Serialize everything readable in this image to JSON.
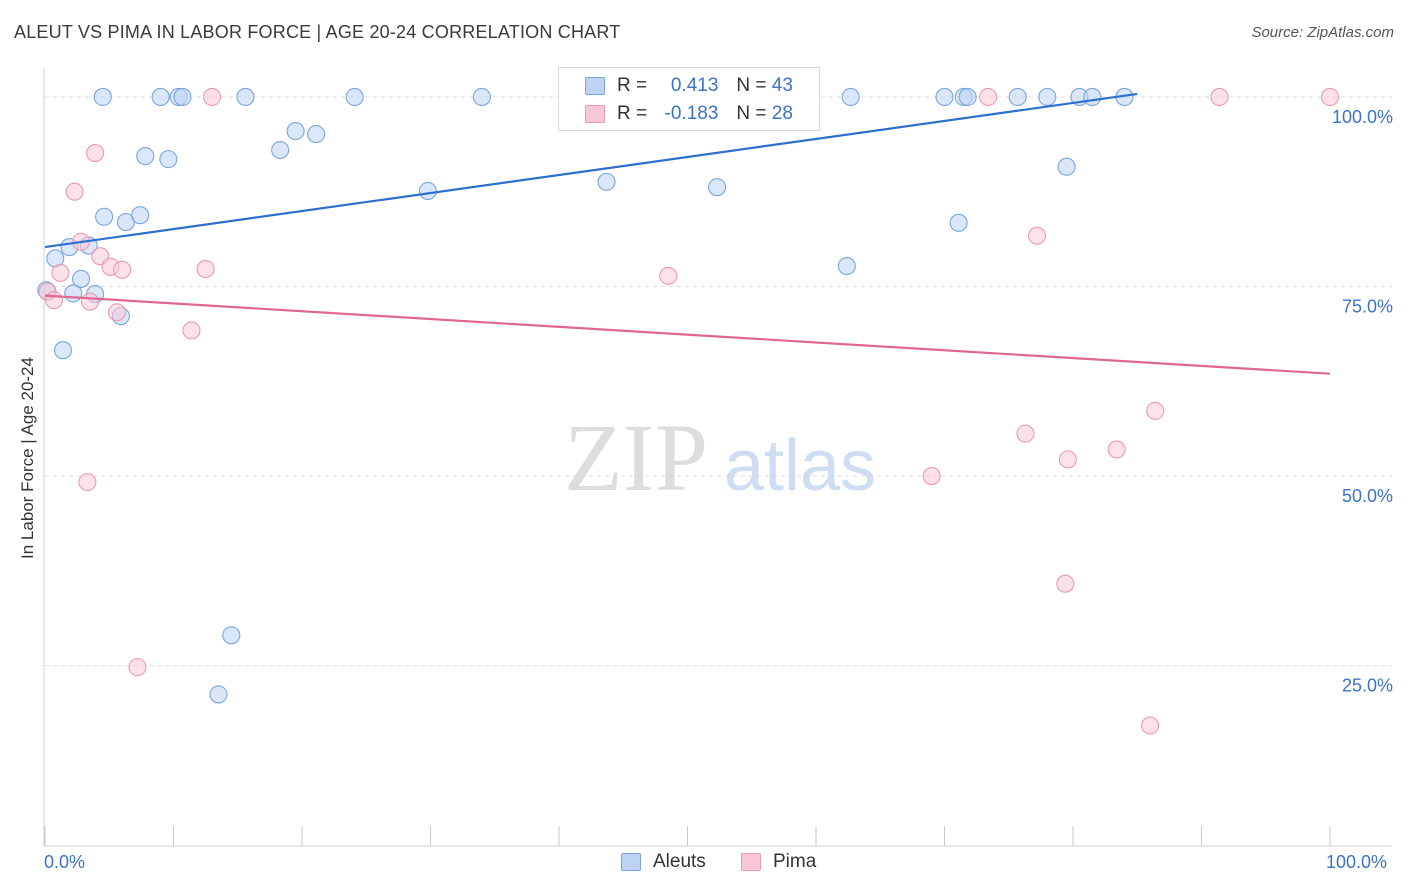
{
  "title": "ALEUT VS PIMA IN LABOR FORCE | AGE 20-24 CORRELATION CHART",
  "source": "Source: ZipAtlas.com",
  "watermark": {
    "zip": "ZIP",
    "atlas": "atlas"
  },
  "legend": {
    "aleuts": {
      "r_label": "R =",
      "r_value": "0.413",
      "n_label": "N =",
      "n_value": "43"
    },
    "pima": {
      "r_label": "R =",
      "r_value": "-0.183",
      "n_label": "N =",
      "n_value": "28"
    }
  },
  "bottom_legend": {
    "aleuts": "Aleuts",
    "pima": "Pima"
  },
  "colors": {
    "aleuts_fill": "#bcd3f2",
    "aleuts_stroke": "#7aa5dd",
    "aleuts_line": "#2d6fce",
    "pima_fill": "#f9c8d6",
    "pima_stroke": "#eb9ab3",
    "pima_line": "#e06694",
    "tick_text": "#3b73c6",
    "grid": "#dcdcdc"
  },
  "chart_data": {
    "type": "scatter",
    "title": "ALEUT VS PIMA IN LABOR FORCE | AGE 20-24 CORRELATION CHART",
    "xlabel": "",
    "ylabel": "In Labor Force | Age 20-24",
    "xlim": [
      0,
      100
    ],
    "ylim": [
      2,
      102.5
    ],
    "x_tick_labels": [
      {
        "label": "0.0%",
        "value": 0
      },
      {
        "label": "100.0%",
        "value": 100
      }
    ],
    "y_tick_labels": [
      {
        "label": "100.0%",
        "value": 100
      },
      {
        "label": "75.0%",
        "value": 75
      },
      {
        "label": "50.0%",
        "value": 50
      },
      {
        "label": "25.0%",
        "value": 25
      }
    ],
    "series": [
      {
        "name": "Aleuts",
        "r": 0.413,
        "n": 43,
        "trend": [
          [
            0,
            80.2
          ],
          [
            85,
            100.4
          ]
        ],
        "points": [
          [
            0.1,
            74.5
          ],
          [
            0.8,
            78.7
          ],
          [
            1.4,
            66.6
          ],
          [
            1.9,
            80.2
          ],
          [
            2.2,
            74.1
          ],
          [
            2.8,
            76.0
          ],
          [
            3.4,
            80.4
          ],
          [
            3.9,
            74.0
          ],
          [
            4.6,
            84.2
          ],
          [
            4.5,
            100.0
          ],
          [
            5.9,
            71.1
          ],
          [
            6.3,
            83.5
          ],
          [
            7.4,
            84.4
          ],
          [
            7.8,
            92.2
          ],
          [
            9.0,
            100.0
          ],
          [
            9.6,
            91.8
          ],
          [
            10.4,
            100.0
          ],
          [
            10.7,
            100.0
          ],
          [
            13.5,
            21.2
          ],
          [
            14.5,
            29.0
          ],
          [
            15.6,
            100.0
          ],
          [
            18.3,
            93.0
          ],
          [
            19.5,
            95.5
          ],
          [
            21.1,
            95.1
          ],
          [
            24.1,
            100.0
          ],
          [
            29.8,
            87.6
          ],
          [
            34.0,
            100.0
          ],
          [
            43.7,
            88.8
          ],
          [
            47.4,
            100.0
          ],
          [
            52.3,
            88.1
          ],
          [
            55.7,
            100.0
          ],
          [
            62.7,
            100.0
          ],
          [
            70.0,
            100.0
          ],
          [
            71.1,
            83.4
          ],
          [
            71.5,
            100.0
          ],
          [
            71.8,
            100.0
          ],
          [
            75.7,
            100.0
          ],
          [
            78.0,
            100.0
          ],
          [
            79.5,
            90.8
          ],
          [
            80.5,
            100.0
          ],
          [
            81.5,
            100.0
          ],
          [
            84.0,
            100.0
          ],
          [
            62.4,
            77.7
          ]
        ]
      },
      {
        "name": "Pima",
        "r": -0.183,
        "n": 28,
        "trend": [
          [
            0,
            73.8
          ],
          [
            100,
            63.5
          ]
        ],
        "points": [
          [
            0.2,
            74.3
          ],
          [
            0.7,
            73.2
          ],
          [
            1.2,
            76.8
          ],
          [
            2.3,
            87.5
          ],
          [
            2.8,
            80.9
          ],
          [
            3.3,
            49.2
          ],
          [
            3.9,
            92.6
          ],
          [
            4.3,
            79.0
          ],
          [
            5.1,
            77.6
          ],
          [
            5.6,
            71.6
          ],
          [
            6.0,
            77.2
          ],
          [
            7.2,
            24.8
          ],
          [
            11.4,
            69.2
          ],
          [
            12.5,
            77.3
          ],
          [
            13.0,
            100.0
          ],
          [
            48.5,
            76.4
          ],
          [
            69.0,
            50.0
          ],
          [
            73.4,
            100.0
          ],
          [
            76.3,
            55.6
          ],
          [
            77.2,
            81.7
          ],
          [
            79.4,
            35.8
          ],
          [
            79.6,
            52.2
          ],
          [
            83.4,
            53.5
          ],
          [
            86.0,
            17.1
          ],
          [
            86.4,
            58.6
          ],
          [
            91.4,
            100.0
          ],
          [
            100.0,
            100.0
          ],
          [
            3.5,
            73.0
          ]
        ]
      }
    ]
  }
}
